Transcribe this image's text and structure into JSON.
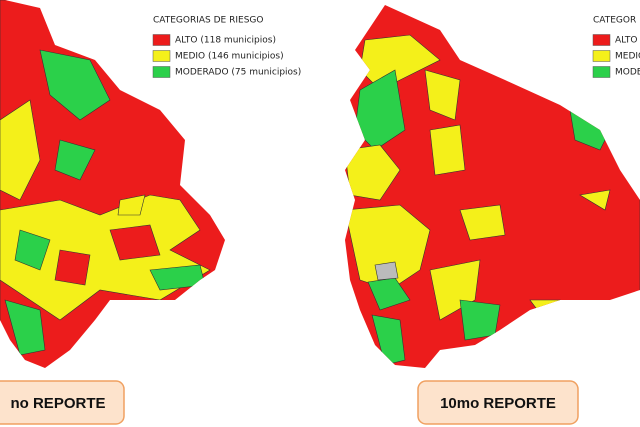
{
  "maps": [
    {
      "legend": {
        "title": "CATEGORIAS DE RIESGO",
        "items": [
          "ALTO (118 municipios)",
          "MEDIO (146 municipios)",
          "MODERADO (75 municipios)"
        ]
      },
      "label": "no REPORTE"
    },
    {
      "legend": {
        "title": "CATEGOR",
        "items": [
          "ALTO",
          "MEDIO",
          "MODERA"
        ]
      },
      "label": "10mo REPORTE"
    }
  ]
}
